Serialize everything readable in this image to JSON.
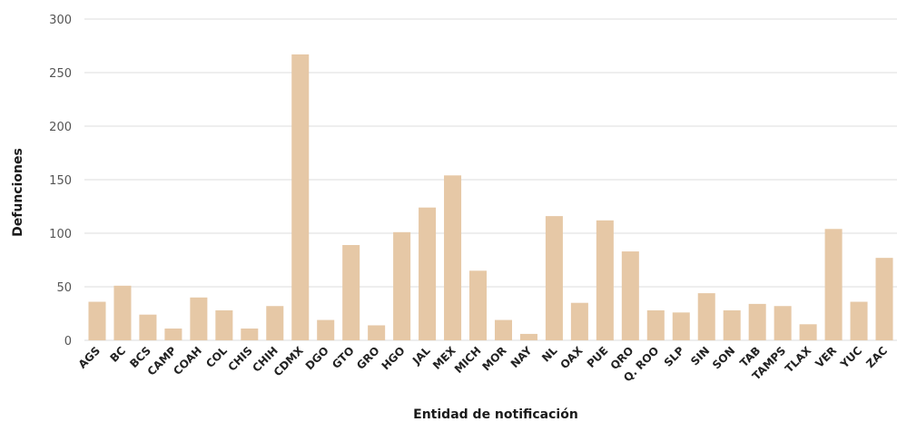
{
  "chart_data": {
    "type": "bar",
    "xlabel": "Entidad de notificación",
    "ylabel": "Defunciones",
    "ylim": [
      0,
      300
    ],
    "yticks": [
      0,
      50,
      100,
      150,
      200,
      250,
      300
    ],
    "grid": true,
    "bar_color": "#e6c8a6",
    "categories": [
      "AGS",
      "BC",
      "BCS",
      "CAMP",
      "COAH",
      "COL",
      "CHIS",
      "CHIH",
      "CDMX",
      "DGO",
      "GTO",
      "GRO",
      "HGO",
      "JAL",
      "MEX",
      "MICH",
      "MOR",
      "NAY",
      "NL",
      "OAX",
      "PUE",
      "QRO",
      "Q. ROO",
      "SLP",
      "SIN",
      "SON",
      "TAB",
      "TAMPS",
      "TLAX",
      "VER",
      "YUC",
      "ZAC"
    ],
    "values": [
      36,
      51,
      24,
      11,
      40,
      28,
      11,
      32,
      267,
      19,
      89,
      14,
      101,
      124,
      154,
      65,
      19,
      6,
      116,
      35,
      112,
      83,
      28,
      26,
      44,
      28,
      34,
      32,
      15,
      104,
      36,
      77
    ]
  }
}
